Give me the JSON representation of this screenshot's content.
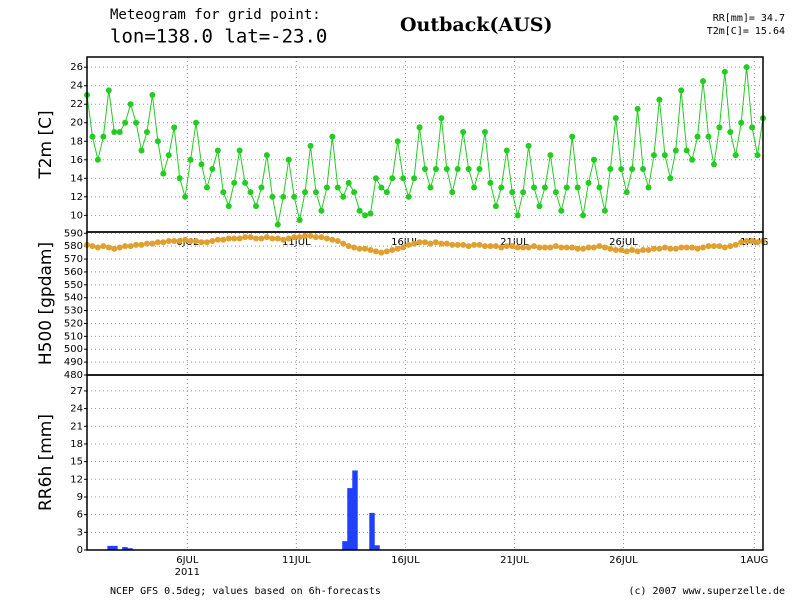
{
  "header": {
    "line1": "Meteogram for grid point:",
    "line2": "lon=138.0 lat=-23.0",
    "station": "Outback(AUS)",
    "rr": "RR[mm]= 34.7",
    "t2m": "T2m[C]= 15.64"
  },
  "footer": {
    "source": "NCEP GFS 0.5deg; values based on 6h-forecasts",
    "copyright": "(c) 2007 www.superzelle.de"
  },
  "chart_data": [
    {
      "type": "line",
      "ylabel": "T2m [C]",
      "color": "#22cc22",
      "grid": true,
      "xlim": [
        1.4,
        32.4
      ],
      "xticks": [
        {
          "value": 6,
          "label": "6JUL"
        },
        {
          "value": 11,
          "label": "11JUL"
        },
        {
          "value": 16,
          "label": "16JUL"
        },
        {
          "value": 21,
          "label": "21JUL"
        },
        {
          "value": 26,
          "label": "26JUL"
        },
        {
          "value": 32,
          "label": "1AUG"
        }
      ],
      "ylim": [
        8.2,
        27.1
      ],
      "yticks": [
        10,
        12,
        14,
        16,
        18,
        20,
        22,
        24,
        26
      ],
      "x": [
        1.4,
        1.65,
        1.9,
        2.15,
        2.4,
        2.65,
        2.9,
        3.15,
        3.4,
        3.65,
        3.9,
        4.15,
        4.4,
        4.65,
        4.9,
        5.15,
        5.4,
        5.65,
        5.9,
        6.15,
        6.4,
        6.65,
        6.9,
        7.15,
        7.4,
        7.65,
        7.9,
        8.15,
        8.4,
        8.65,
        8.9,
        9.15,
        9.4,
        9.65,
        9.9,
        10.15,
        10.4,
        10.65,
        10.9,
        11.15,
        11.4,
        11.65,
        11.9,
        12.15,
        12.4,
        12.65,
        12.9,
        13.15,
        13.4,
        13.65,
        13.9,
        14.15,
        14.4,
        14.65,
        14.9,
        15.15,
        15.4,
        15.65,
        15.9,
        16.15,
        16.4,
        16.65,
        16.9,
        17.15,
        17.4,
        17.65,
        17.9,
        18.15,
        18.4,
        18.65,
        18.9,
        19.15,
        19.4,
        19.65,
        19.9,
        20.15,
        20.4,
        20.65,
        20.9,
        21.15,
        21.4,
        21.65,
        21.9,
        22.15,
        22.4,
        22.65,
        22.9,
        23.15,
        23.4,
        23.65,
        23.9,
        24.15,
        24.4,
        24.65,
        24.9,
        25.15,
        25.4,
        25.65,
        25.9,
        26.15,
        26.4,
        26.65,
        26.9,
        27.15,
        27.4,
        27.65,
        27.9,
        28.15,
        28.4,
        28.65,
        28.9,
        29.15,
        29.4,
        29.65,
        29.9,
        30.15,
        30.4,
        30.65,
        30.9,
        31.15,
        31.4,
        31.65,
        31.9,
        32.15,
        32.4
      ],
      "values": [
        23,
        18.5,
        16,
        18.5,
        23.5,
        19,
        19,
        20,
        22,
        20,
        17,
        19,
        23,
        18,
        14.5,
        16.5,
        19.5,
        14,
        12,
        16,
        20,
        15.5,
        13,
        15,
        17,
        12.5,
        11,
        13.5,
        17,
        13.5,
        12.5,
        11,
        13,
        16.5,
        12,
        9,
        12,
        16,
        12,
        9.5,
        12.5,
        17.5,
        12.5,
        10.5,
        13,
        18.5,
        13,
        12,
        13.5,
        12.5,
        10.5,
        10,
        10.2,
        14,
        13,
        12.5,
        14,
        18,
        14,
        12,
        14,
        19.5,
        15,
        13,
        15,
        20.5,
        15,
        12.5,
        15,
        19,
        15,
        13,
        15,
        19,
        13.5,
        11,
        13,
        17,
        12.5,
        10,
        12.5,
        17.5,
        13,
        11,
        13,
        16.5,
        12.5,
        10.5,
        13,
        18.5,
        13,
        10,
        13.5,
        16,
        13,
        10.5,
        15,
        20.5,
        15,
        12.5,
        15,
        21.5,
        15,
        13,
        16.5,
        22.5,
        16.5,
        14,
        17,
        23.5,
        17,
        16,
        18.5,
        24.5,
        18.5,
        15.5,
        19.5,
        25.5,
        19,
        16.5,
        20,
        26,
        19.5,
        16.5,
        20.5
      ]
    },
    {
      "type": "line",
      "ylabel": "H500 [gpdam]",
      "color": "#e0a030",
      "grid": true,
      "xlim": [
        1.4,
        32.4
      ],
      "xticks": [
        {
          "value": 6,
          "label": "6JUL"
        },
        {
          "value": 11,
          "label": "11JUL"
        },
        {
          "value": 16,
          "label": "16JUL"
        },
        {
          "value": 21,
          "label": "21JUL"
        },
        {
          "value": 26,
          "label": "26JUL"
        },
        {
          "value": 32,
          "label": "1AUG"
        }
      ],
      "ylim": [
        480,
        591
      ],
      "yticks": [
        480,
        490,
        500,
        510,
        520,
        530,
        540,
        550,
        560,
        570,
        580,
        590
      ],
      "x": [
        1.4,
        1.65,
        1.9,
        2.15,
        2.4,
        2.65,
        2.9,
        3.15,
        3.4,
        3.65,
        3.9,
        4.15,
        4.4,
        4.65,
        4.9,
        5.15,
        5.4,
        5.65,
        5.9,
        6.15,
        6.4,
        6.65,
        6.9,
        7.15,
        7.4,
        7.65,
        7.9,
        8.15,
        8.4,
        8.65,
        8.9,
        9.15,
        9.4,
        9.65,
        9.9,
        10.15,
        10.4,
        10.65,
        10.9,
        11.15,
        11.4,
        11.65,
        11.9,
        12.15,
        12.4,
        12.65,
        12.9,
        13.15,
        13.4,
        13.65,
        13.9,
        14.15,
        14.4,
        14.65,
        14.9,
        15.15,
        15.4,
        15.65,
        15.9,
        16.15,
        16.4,
        16.65,
        16.9,
        17.15,
        17.4,
        17.65,
        17.9,
        18.15,
        18.4,
        18.65,
        18.9,
        19.15,
        19.4,
        19.65,
        19.9,
        20.15,
        20.4,
        20.65,
        20.9,
        21.15,
        21.4,
        21.65,
        21.9,
        22.15,
        22.4,
        22.65,
        22.9,
        23.15,
        23.4,
        23.65,
        23.9,
        24.15,
        24.4,
        24.65,
        24.9,
        25.15,
        25.4,
        25.65,
        25.9,
        26.15,
        26.4,
        26.65,
        26.9,
        27.15,
        27.4,
        27.65,
        27.9,
        28.15,
        28.4,
        28.65,
        28.9,
        29.15,
        29.4,
        29.65,
        29.9,
        30.15,
        30.4,
        30.65,
        30.9,
        31.15,
        31.4,
        31.65,
        31.9,
        32.15,
        32.4
      ],
      "values": [
        581,
        580,
        579,
        580,
        579,
        578,
        579,
        580,
        580,
        581,
        581,
        582,
        582,
        583,
        583,
        584,
        584,
        584,
        585,
        584,
        584,
        583,
        583,
        584,
        585,
        585,
        586,
        586,
        586,
        587,
        587,
        586,
        586,
        587,
        586,
        586,
        585,
        586,
        587,
        587,
        588,
        588,
        587,
        587,
        586,
        585,
        584,
        582,
        580,
        579,
        578,
        578,
        577,
        576,
        575,
        576,
        577,
        578,
        579,
        581,
        582,
        583,
        583,
        582,
        583,
        582,
        582,
        581,
        581,
        581,
        580,
        581,
        581,
        580,
        580,
        580,
        579,
        580,
        580,
        579,
        579,
        579,
        580,
        579,
        579,
        579,
        580,
        579,
        579,
        579,
        578,
        578,
        579,
        579,
        580,
        579,
        578,
        577,
        577,
        576,
        577,
        576,
        577,
        577,
        578,
        578,
        579,
        578,
        578,
        579,
        579,
        579,
        578,
        579,
        580,
        580,
        580,
        579,
        580,
        581,
        583,
        584,
        584,
        583,
        584
      ]
    },
    {
      "type": "bar",
      "ylabel": "RR6h [mm]",
      "color": "#2040ff",
      "grid": true,
      "year_label": "2011",
      "xlim": [
        1.4,
        32.4
      ],
      "xticks": [
        {
          "value": 6,
          "label": "6JUL"
        },
        {
          "value": 11,
          "label": "11JUL"
        },
        {
          "value": 16,
          "label": "16JUL"
        },
        {
          "value": 21,
          "label": "21JUL"
        },
        {
          "value": 26,
          "label": "26JUL"
        },
        {
          "value": 32,
          "label": "1AUG"
        }
      ],
      "ylim": [
        0,
        29.7
      ],
      "yticks": [
        0,
        3,
        6,
        9,
        12,
        15,
        18,
        21,
        24,
        27
      ],
      "x": [
        2.46,
        2.68,
        3.14,
        3.37,
        13.23,
        13.46,
        13.69,
        14.47,
        14.7
      ],
      "values": [
        0.7,
        0.7,
        0.5,
        0.3,
        1.5,
        10.5,
        13.5,
        6.3,
        0.8
      ]
    }
  ]
}
